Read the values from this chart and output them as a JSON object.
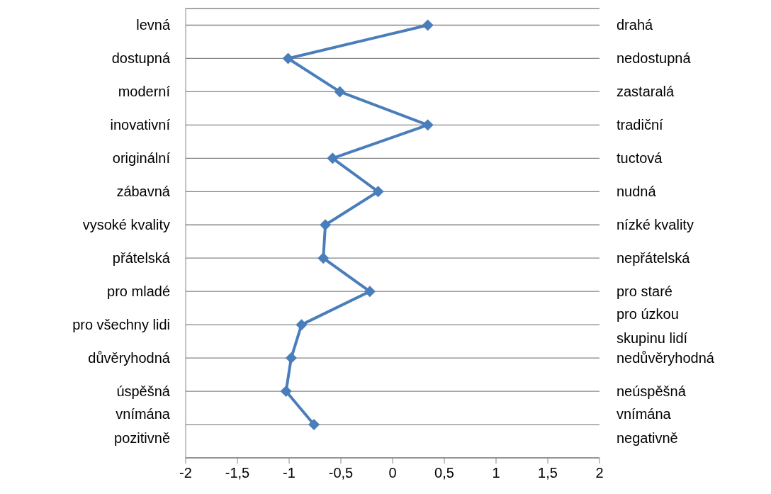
{
  "chart_data": {
    "type": "line",
    "orientation": "horizontal",
    "categories": [
      "levná",
      "dostupná",
      "moderní",
      "inovativní",
      "originální",
      "zábavná",
      "vysoké kvality",
      "přátelská",
      "pro mladé",
      "pro všechny lidi",
      "důvěryhodná",
      "úspěšná",
      "vnímána pozitivně"
    ],
    "y2_categories": [
      "drahá",
      "nedostupná",
      "zastaralá",
      "tradiční",
      "tuctová",
      "nudná",
      "nízké kvality",
      "nepřátelská",
      "pro staré",
      "pro úzkou skupinu lidí",
      "nedůvěryhodná",
      "neúspěšná",
      "vnímána negativně"
    ],
    "series": [
      {
        "color": "#4a7ebb",
        "values": [
          0.34,
          -1.01,
          -0.51,
          0.34,
          -0.58,
          -0.14,
          -0.65,
          -0.67,
          -0.22,
          -0.88,
          -0.98,
          -1.03,
          -0.76
        ]
      }
    ],
    "xlim": [
      -2,
      2
    ],
    "xticks": [
      {
        "value": -2,
        "label": "-2"
      },
      {
        "value": -1.5,
        "label": "-1,5"
      },
      {
        "value": -1,
        "label": "-1"
      },
      {
        "value": -0.5,
        "label": "-0,5"
      },
      {
        "value": 0,
        "label": "0"
      },
      {
        "value": 0.5,
        "label": "0,5"
      },
      {
        "value": 1,
        "label": "1"
      },
      {
        "value": 1.5,
        "label": "1,5"
      },
      {
        "value": 2,
        "label": "2"
      }
    ],
    "grid": "y",
    "marker": "diamond",
    "line_style": "solid"
  }
}
